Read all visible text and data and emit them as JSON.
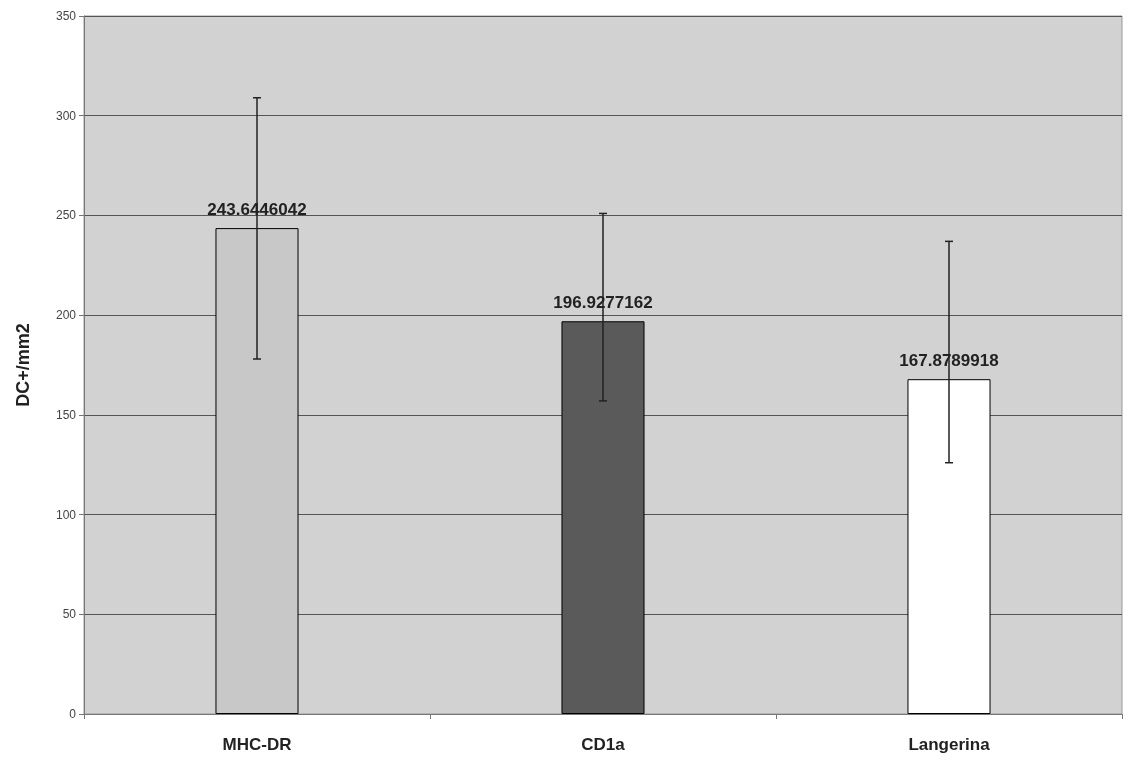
{
  "chart_data": {
    "type": "bar",
    "ylabel": "DC+/mm2",
    "categories": [
      "MHC-DR",
      "CD1a",
      "Langerina"
    ],
    "values": [
      243.6446042,
      196.9277162,
      167.8789918
    ],
    "colors": [
      "#c8c8c8",
      "#5a5a5a",
      "#ffffff"
    ],
    "errors": [
      [
        178,
        309
      ],
      [
        157,
        251
      ],
      [
        126,
        237
      ]
    ],
    "data_labels": true,
    "ylim": [
      0,
      350
    ],
    "yticks": [
      0,
      50,
      100,
      150,
      200,
      250,
      300,
      350
    ],
    "grid": "y"
  }
}
